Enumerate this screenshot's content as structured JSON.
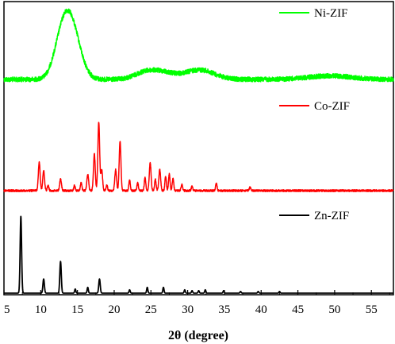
{
  "chart_data": {
    "type": "line",
    "xlabel": "2θ (degree)",
    "ylabel": "",
    "xlim": [
      5,
      58
    ],
    "xticks": [
      5,
      10,
      15,
      20,
      25,
      30,
      35,
      40,
      45,
      50,
      55
    ],
    "grid": false,
    "legend": "per-series labels at top-right of each trace",
    "series": [
      {
        "name": "Ni-ZIF",
        "color": "#00ff00",
        "peaks": [
          {
            "x": 13.9,
            "height": 0.52,
            "width": 1.3
          },
          {
            "x": 12.6,
            "height": 0.12,
            "width": 1.0
          },
          {
            "x": 24.3,
            "height": 0.06,
            "width": 1.5
          },
          {
            "x": 26.8,
            "height": 0.05,
            "width": 1.5
          },
          {
            "x": 31.6,
            "height": 0.08,
            "width": 2.0
          },
          {
            "x": 49.4,
            "height": 0.03,
            "width": 3.0
          }
        ]
      },
      {
        "name": "Co-ZIF",
        "color": "#ff0000",
        "peaks": [
          {
            "x": 9.8,
            "height": 0.33,
            "width": 0.12
          },
          {
            "x": 10.4,
            "height": 0.23,
            "width": 0.12
          },
          {
            "x": 11.0,
            "height": 0.06,
            "width": 0.1
          },
          {
            "x": 12.7,
            "height": 0.13,
            "width": 0.12
          },
          {
            "x": 14.6,
            "height": 0.06,
            "width": 0.1
          },
          {
            "x": 15.5,
            "height": 0.09,
            "width": 0.1
          },
          {
            "x": 16.4,
            "height": 0.19,
            "width": 0.12
          },
          {
            "x": 17.3,
            "height": 0.42,
            "width": 0.12
          },
          {
            "x": 17.9,
            "height": 0.79,
            "width": 0.12
          },
          {
            "x": 18.3,
            "height": 0.24,
            "width": 0.12
          },
          {
            "x": 19.0,
            "height": 0.06,
            "width": 0.1
          },
          {
            "x": 20.2,
            "height": 0.24,
            "width": 0.12
          },
          {
            "x": 20.8,
            "height": 0.56,
            "width": 0.12
          },
          {
            "x": 22.1,
            "height": 0.12,
            "width": 0.1
          },
          {
            "x": 23.2,
            "height": 0.09,
            "width": 0.1
          },
          {
            "x": 24.2,
            "height": 0.15,
            "width": 0.1
          },
          {
            "x": 24.9,
            "height": 0.32,
            "width": 0.12
          },
          {
            "x": 25.6,
            "height": 0.13,
            "width": 0.1
          },
          {
            "x": 26.2,
            "height": 0.24,
            "width": 0.12
          },
          {
            "x": 27.0,
            "height": 0.16,
            "width": 0.1
          },
          {
            "x": 27.5,
            "height": 0.19,
            "width": 0.1
          },
          {
            "x": 28.0,
            "height": 0.14,
            "width": 0.1
          },
          {
            "x": 29.2,
            "height": 0.07,
            "width": 0.1
          },
          {
            "x": 30.6,
            "height": 0.05,
            "width": 0.1
          },
          {
            "x": 33.9,
            "height": 0.08,
            "width": 0.1
          },
          {
            "x": 38.5,
            "height": 0.04,
            "width": 0.1
          }
        ]
      },
      {
        "name": "Zn-ZIF",
        "color": "#000000",
        "peaks": [
          {
            "x": 7.3,
            "height": 0.92,
            "width": 0.1
          },
          {
            "x": 10.4,
            "height": 0.17,
            "width": 0.1
          },
          {
            "x": 12.7,
            "height": 0.38,
            "width": 0.1
          },
          {
            "x": 14.7,
            "height": 0.05,
            "width": 0.08
          },
          {
            "x": 16.4,
            "height": 0.07,
            "width": 0.08
          },
          {
            "x": 18.0,
            "height": 0.17,
            "width": 0.1
          },
          {
            "x": 22.1,
            "height": 0.04,
            "width": 0.08
          },
          {
            "x": 24.5,
            "height": 0.07,
            "width": 0.08
          },
          {
            "x": 26.7,
            "height": 0.07,
            "width": 0.08
          },
          {
            "x": 29.6,
            "height": 0.04,
            "width": 0.08
          },
          {
            "x": 30.6,
            "height": 0.03,
            "width": 0.08
          },
          {
            "x": 31.5,
            "height": 0.03,
            "width": 0.08
          },
          {
            "x": 32.4,
            "height": 0.04,
            "width": 0.08
          },
          {
            "x": 34.9,
            "height": 0.03,
            "width": 0.08
          },
          {
            "x": 37.2,
            "height": 0.02,
            "width": 0.08
          },
          {
            "x": 39.6,
            "height": 0.02,
            "width": 0.08
          },
          {
            "x": 42.5,
            "height": 0.02,
            "width": 0.08
          }
        ]
      }
    ]
  }
}
